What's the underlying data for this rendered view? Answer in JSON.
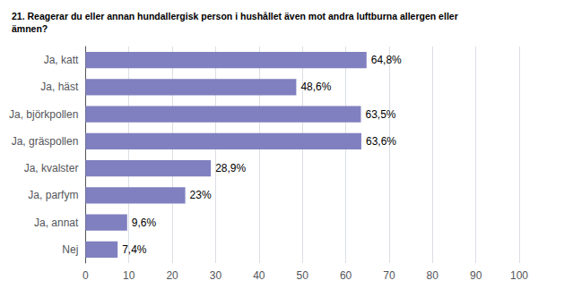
{
  "chart_data": {
    "type": "bar",
    "orientation": "horizontal",
    "title": "21. Reagerar du eller annan hundallergisk person i hushållet även mot andra luftburna allergen eller\nämnen?",
    "categories": [
      "Ja, katt",
      "Ja, häst",
      "Ja, björkpollen",
      "Ja, gräspollen",
      "Ja, kvalster",
      "Ja, parfym",
      "Ja, annat",
      "Nej"
    ],
    "values": [
      64.8,
      48.6,
      63.5,
      63.6,
      28.9,
      23.0,
      9.6,
      7.4
    ],
    "value_labels": [
      "64,8%",
      "48,6%",
      "63,5%",
      "63,6%",
      "28,9%",
      "23%",
      "9,6%",
      "7,4%"
    ],
    "data_labels": true,
    "color": "#8080c0",
    "xlim": [
      0,
      100
    ],
    "xticks": [
      0,
      10,
      20,
      30,
      40,
      50,
      60,
      70,
      80,
      90,
      100
    ],
    "grid": true
  }
}
